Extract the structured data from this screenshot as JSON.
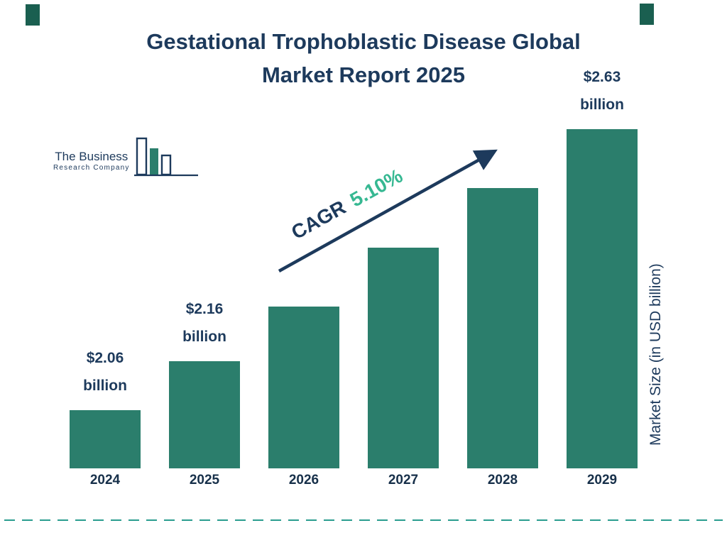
{
  "title": {
    "line1": "Gestational Trophoblastic Disease Global",
    "line2": "Market Report 2025"
  },
  "logo": {
    "name_line1": "The Business",
    "name_line2": "Research Company"
  },
  "annotation": {
    "cagr_label": "CAGR",
    "cagr_value": "5.10%"
  },
  "y_axis_label": "Market Size (in USD billion)",
  "colors": {
    "navy": "#1d3a5c",
    "bar_teal": "#2b7e6c",
    "accent_teal": "#36b892",
    "dashed_line": "#2a9d8f",
    "corner_accent": "#1a5f50"
  },
  "chart_data": {
    "type": "bar",
    "title": "Gestational Trophoblastic Disease Global Market Report 2025",
    "categories": [
      "2024",
      "2025",
      "2026",
      "2027",
      "2028",
      "2029"
    ],
    "values": [
      2.06,
      2.16,
      2.27,
      2.39,
      2.51,
      2.63
    ],
    "unit": "USD billion",
    "cagr": "5.10%",
    "xlabel": "",
    "ylabel": "Market Size (in USD billion)",
    "ylim": [
      2.0,
      2.7
    ],
    "grid": false,
    "legend": false,
    "labels_line1": [
      "$2.06",
      "$2.16",
      "",
      "",
      "",
      "$2.63"
    ],
    "labels_line2": [
      "billion",
      "billion",
      "",
      "",
      "",
      "billion"
    ]
  }
}
